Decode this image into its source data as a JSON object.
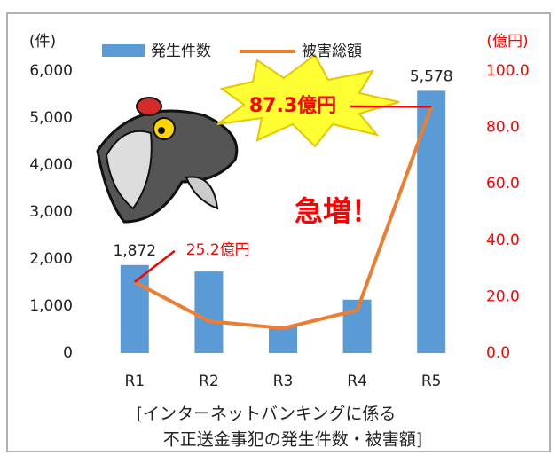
{
  "chart_data": {
    "type": "bar",
    "categories": [
      "R1",
      "R2",
      "R3",
      "R4",
      "R5"
    ],
    "series": [
      {
        "name": "発生件数",
        "type": "bar",
        "color": "#5b9bd5",
        "values": [
          1872,
          1734,
          563,
          1136,
          5578
        ],
        "value_labels": [
          "1,872",
          null,
          null,
          null,
          "5,578"
        ]
      },
      {
        "name": "被害総額",
        "type": "line",
        "axis": "y2",
        "color": "#ed7d31",
        "values": [
          25.2,
          11.3,
          8.8,
          15.2,
          87.3
        ],
        "value_labels": [
          "25.2億円",
          null,
          null,
          null,
          "87.3億円"
        ]
      }
    ],
    "ylabel": "(件)",
    "y2label": "(億円)",
    "y2color": "#ff0000",
    "ylim": [
      0,
      6000
    ],
    "yticks": [
      0,
      {
        "value": 1000,
        "label": "1,000"
      },
      {
        "value": 2000,
        "label": "2,000"
      },
      {
        "value": 3000,
        "label": "3,000"
      },
      {
        "value": 4000,
        "label": "4,000"
      },
      {
        "value": 5000,
        "label": "5,000"
      },
      {
        "value": 6000,
        "label": "6,000"
      }
    ],
    "y2lim": [
      0,
      100
    ],
    "y2ticks": [
      {
        "value": 0,
        "label": "0.0"
      },
      {
        "value": 20,
        "label": "20.0"
      },
      {
        "value": 40,
        "label": "40.0"
      },
      {
        "value": 60,
        "label": "60.0"
      },
      {
        "value": 80,
        "label": "80.0"
      },
      {
        "value": 100,
        "label": "100.0"
      }
    ],
    "annotation": "急増！",
    "caption": [
      "[インターネットバンキングに係る",
      "不正送金事犯の発生件数・被害額]"
    ]
  }
}
